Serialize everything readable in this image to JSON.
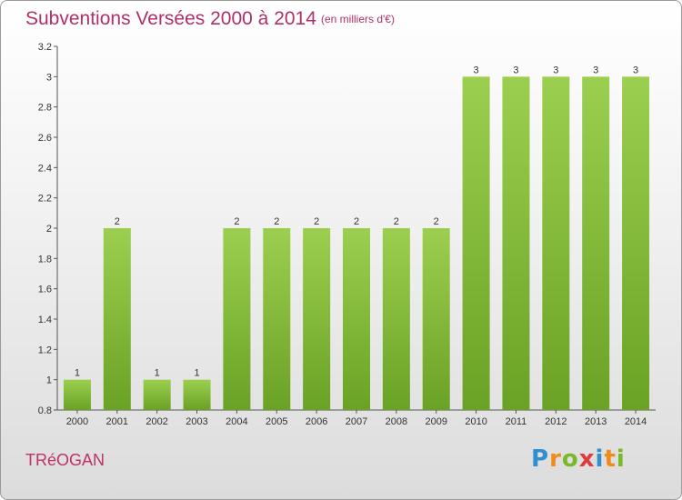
{
  "header": {
    "title": "Subventions Versées 2000 à 2014",
    "subtitle": "(en milliers d'€)"
  },
  "footer": {
    "place": "TRéOGAN",
    "logo": "Proxiti"
  },
  "colors": {
    "bar_top": "#9ccf4f",
    "bar_bottom": "#6aa225",
    "title": "#b0306a"
  },
  "chart_data": {
    "type": "bar",
    "title": "Subventions Versées 2000 à 2014",
    "subtitle": "(en milliers d'€)",
    "categories": [
      "2000",
      "2001",
      "2002",
      "2003",
      "2004",
      "2005",
      "2006",
      "2007",
      "2008",
      "2009",
      "2010",
      "2011",
      "2012",
      "2013",
      "2014"
    ],
    "values": [
      1,
      2,
      1,
      1,
      2,
      2,
      2,
      2,
      2,
      2,
      3,
      3,
      3,
      3,
      3
    ],
    "data_labels": [
      "1",
      "2",
      "1",
      "1",
      "2",
      "2",
      "2",
      "2",
      "2",
      "2",
      "3",
      "3",
      "3",
      "3",
      "3"
    ],
    "ylim": [
      0.8,
      3.2
    ],
    "yticks": [
      0.8,
      1,
      1.2,
      1.4,
      1.6,
      1.8,
      2,
      2.2,
      2.4,
      2.6,
      2.8,
      3,
      3.2
    ],
    "ytick_labels": [
      "0.8",
      "1",
      "1.2",
      "1.4",
      "1.6",
      "1.8",
      "2",
      "2.2",
      "2.4",
      "2.6",
      "2.8",
      "3",
      "3.2"
    ],
    "grid": false
  }
}
